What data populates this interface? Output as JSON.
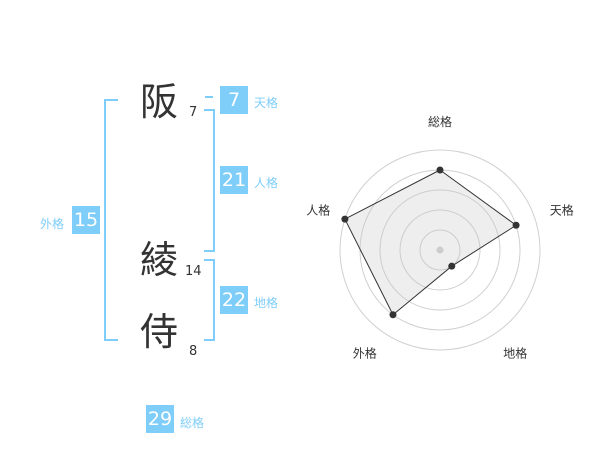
{
  "name": {
    "chars": [
      {
        "kanji": "阪",
        "strokes": "7"
      },
      {
        "kanji": "綾",
        "strokes": "14"
      },
      {
        "kanji": "侍",
        "strokes": "8"
      }
    ]
  },
  "fortunes": {
    "tenkaku": {
      "label": "天格",
      "value": "7"
    },
    "jinkaku": {
      "label": "人格",
      "value": "21"
    },
    "chikaku": {
      "label": "地格",
      "value": "22"
    },
    "gaikaku": {
      "label": "外格",
      "value": "15"
    },
    "soukaku": {
      "label": "総格",
      "value": "29"
    }
  },
  "colors": {
    "accent": "#7fcdf9",
    "text": "#333333"
  },
  "chart_data": {
    "type": "radar",
    "axes": [
      "総格",
      "天格",
      "地格",
      "外格",
      "人格"
    ],
    "values": [
      4,
      4,
      1,
      4,
      5
    ],
    "range": [
      0,
      5
    ],
    "rings": 5
  }
}
